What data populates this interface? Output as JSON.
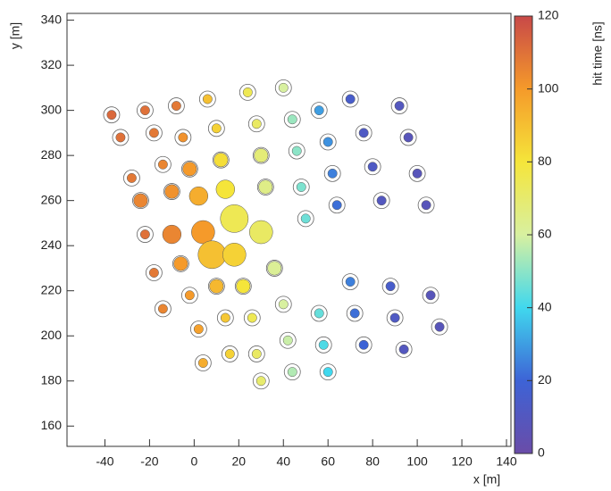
{
  "chart_data": {
    "type": "scatter",
    "x_label": "x [m]",
    "y_label": "y [m]",
    "colorbar_label": "hit time [ns]",
    "xlim": [
      -57,
      142
    ],
    "ylim": [
      151,
      343
    ],
    "xticks": [
      -40,
      -20,
      0,
      20,
      40,
      60,
      80,
      100,
      120,
      140
    ],
    "yticks": [
      160,
      180,
      200,
      220,
      240,
      260,
      280,
      300,
      320,
      340
    ],
    "colorbar_lim": [
      0,
      120
    ],
    "colorbar_ticks": [
      0,
      20,
      40,
      60,
      80,
      100,
      120
    ],
    "colormap": [
      "#6a4ca8",
      "#3d63d6",
      "#40d8ee",
      "#d8f0a0",
      "#f5e53a",
      "#f59a2a",
      "#c84848"
    ],
    "x": [
      -37,
      -33,
      -28,
      -24,
      -22,
      -18,
      -14,
      -22,
      -18,
      -14,
      -10,
      -10,
      -6,
      -2,
      2,
      4,
      -8,
      -5,
      -2,
      2,
      4,
      8,
      10,
      14,
      16,
      6,
      10,
      12,
      14,
      18,
      18,
      22,
      26,
      28,
      30,
      24,
      28,
      30,
      32,
      30,
      36,
      40,
      42,
      44,
      40,
      44,
      46,
      48,
      50,
      56,
      58,
      60,
      56,
      60,
      62,
      64,
      70,
      72,
      76,
      70,
      76,
      80,
      84,
      88,
      90,
      94,
      92,
      96,
      100,
      104,
      106,
      110
    ],
    "y": [
      298,
      288,
      270,
      260,
      245,
      228,
      212,
      300,
      290,
      276,
      264,
      245,
      232,
      218,
      203,
      188,
      302,
      288,
      274,
      262,
      246,
      236,
      222,
      208,
      192,
      305,
      292,
      278,
      265,
      252,
      236,
      222,
      208,
      192,
      180,
      308,
      294,
      280,
      266,
      246,
      230,
      214,
      198,
      184,
      310,
      296,
      282,
      266,
      252,
      210,
      196,
      184,
      300,
      286,
      272,
      258,
      224,
      210,
      196,
      305,
      290,
      275,
      260,
      222,
      208,
      194,
      302,
      288,
      272,
      258,
      218,
      204
    ],
    "hit_time": [
      112,
      110,
      108,
      105,
      110,
      108,
      105,
      110,
      108,
      105,
      102,
      105,
      100,
      100,
      98,
      95,
      108,
      102,
      100,
      95,
      100,
      90,
      92,
      88,
      85,
      90,
      85,
      82,
      80,
      75,
      85,
      80,
      75,
      72,
      70,
      75,
      72,
      68,
      65,
      72,
      62,
      60,
      58,
      55,
      60,
      52,
      50,
      48,
      46,
      45,
      42,
      40,
      30,
      28,
      25,
      22,
      25,
      22,
      20,
      15,
      12,
      12,
      10,
      15,
      12,
      10,
      10,
      8,
      8,
      8,
      8,
      8
    ],
    "sizes": [
      2,
      2,
      2,
      3,
      2,
      2,
      2,
      2,
      2,
      2,
      3,
      4,
      3,
      2,
      2,
      2,
      2,
      2,
      3,
      4,
      5,
      6,
      3,
      2,
      2,
      2,
      2,
      3,
      4,
      6,
      5,
      3,
      2,
      2,
      2,
      2,
      2,
      3,
      3,
      5,
      3,
      2,
      2,
      2,
      2,
      2,
      2,
      2,
      2,
      2,
      2,
      2,
      2,
      2,
      2,
      2,
      2,
      2,
      2,
      2,
      2,
      2,
      2,
      2,
      2,
      2,
      2,
      2,
      2,
      2,
      2,
      2
    ]
  }
}
